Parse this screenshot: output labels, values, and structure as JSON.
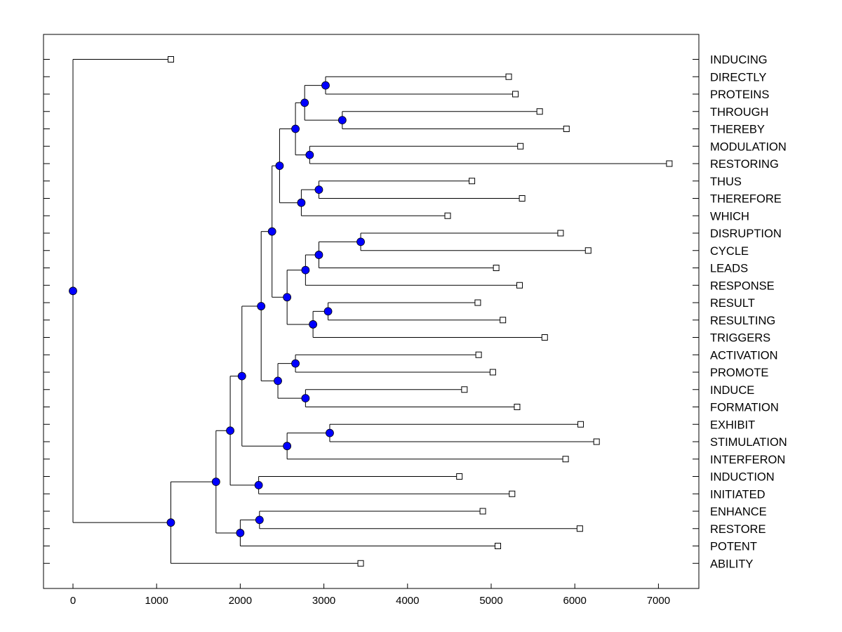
{
  "chart_data": {
    "type": "dendrogram",
    "title": "",
    "xlabel": "",
    "ylabel": "",
    "xlim": [
      -360,
      7500
    ],
    "x_ticks": [
      0,
      1000,
      2000,
      3000,
      4000,
      5000,
      6000,
      7000
    ],
    "x_tick_labels": [
      "0",
      "1000",
      "2000",
      "3000",
      "4000",
      "5000",
      "6000",
      "7000"
    ],
    "leaf_marker_color": "#ffffff",
    "node_marker_color": "#0000ff",
    "line_color": "#000000",
    "leaves": [
      {
        "id": "L0",
        "label": "INDUCING",
        "x": 1170
      },
      {
        "id": "L1",
        "label": "DIRECTLY",
        "x": 5210
      },
      {
        "id": "L2",
        "label": "PROTEINS",
        "x": 5290
      },
      {
        "id": "L3",
        "label": "THROUGH",
        "x": 5580
      },
      {
        "id": "L4",
        "label": "THEREBY",
        "x": 5900
      },
      {
        "id": "L5",
        "label": "MODULATION",
        "x": 5350
      },
      {
        "id": "L6",
        "label": "RESTORING",
        "x": 7130
      },
      {
        "id": "L7",
        "label": "THUS",
        "x": 4770
      },
      {
        "id": "L8",
        "label": "THEREFORE",
        "x": 5370
      },
      {
        "id": "L9",
        "label": "WHICH",
        "x": 4480
      },
      {
        "id": "L10",
        "label": "DISRUPTION",
        "x": 5830
      },
      {
        "id": "L11",
        "label": "CYCLE",
        "x": 6160
      },
      {
        "id": "L12",
        "label": "LEADS",
        "x": 5060
      },
      {
        "id": "L13",
        "label": "RESPONSE",
        "x": 5340
      },
      {
        "id": "L14",
        "label": "RESULT",
        "x": 4840
      },
      {
        "id": "L15",
        "label": "RESULTING",
        "x": 5140
      },
      {
        "id": "L16",
        "label": "TRIGGERS",
        "x": 5640
      },
      {
        "id": "L17",
        "label": "ACTIVATION",
        "x": 4850
      },
      {
        "id": "L18",
        "label": "PROMOTE",
        "x": 5020
      },
      {
        "id": "L19",
        "label": "INDUCE",
        "x": 4680
      },
      {
        "id": "L20",
        "label": "FORMATION",
        "x": 5310
      },
      {
        "id": "L21",
        "label": "EXHIBIT",
        "x": 6070
      },
      {
        "id": "L22",
        "label": "STIMULATION",
        "x": 6260
      },
      {
        "id": "L23",
        "label": "INTERFERON",
        "x": 5890
      },
      {
        "id": "L24",
        "label": "INDUCTION",
        "x": 4620
      },
      {
        "id": "L25",
        "label": "INITIATED",
        "x": 5250
      },
      {
        "id": "L26",
        "label": "ENHANCE",
        "x": 4900
      },
      {
        "id": "L27",
        "label": "RESTORE",
        "x": 6060
      },
      {
        "id": "L28",
        "label": "POTENT",
        "x": 5080
      },
      {
        "id": "L29",
        "label": "ABILITY",
        "x": 3440
      }
    ],
    "nodes": [
      {
        "id": "N1",
        "x": 3020,
        "children": [
          "L1",
          "L2"
        ]
      },
      {
        "id": "N2",
        "x": 3220,
        "children": [
          "L3",
          "L4"
        ]
      },
      {
        "id": "N3",
        "x": 2770,
        "children": [
          "N1",
          "N2"
        ]
      },
      {
        "id": "N4",
        "x": 2830,
        "children": [
          "L5",
          "L6"
        ]
      },
      {
        "id": "N5",
        "x": 2660,
        "children": [
          "N3",
          "N4"
        ]
      },
      {
        "id": "N6",
        "x": 2940,
        "children": [
          "L7",
          "L8"
        ]
      },
      {
        "id": "N7",
        "x": 2730,
        "children": [
          "N6",
          "L9"
        ]
      },
      {
        "id": "N8",
        "x": 2470,
        "children": [
          "N5",
          "N7"
        ]
      },
      {
        "id": "N9",
        "x": 3440,
        "children": [
          "L10",
          "L11"
        ]
      },
      {
        "id": "N10",
        "x": 2940,
        "children": [
          "N9",
          "L12"
        ]
      },
      {
        "id": "N11",
        "x": 2780,
        "children": [
          "N10",
          "L13"
        ]
      },
      {
        "id": "N12",
        "x": 3050,
        "children": [
          "L14",
          "L15"
        ]
      },
      {
        "id": "N13",
        "x": 2870,
        "children": [
          "N12",
          "L16"
        ]
      },
      {
        "id": "N14",
        "x": 2560,
        "children": [
          "N11",
          "N13"
        ]
      },
      {
        "id": "N15",
        "x": 2380,
        "children": [
          "N8",
          "N14"
        ]
      },
      {
        "id": "N16",
        "x": 2660,
        "children": [
          "L17",
          "L18"
        ]
      },
      {
        "id": "N17",
        "x": 2780,
        "children": [
          "L19",
          "L20"
        ]
      },
      {
        "id": "N18",
        "x": 2450,
        "children": [
          "N16",
          "N17"
        ]
      },
      {
        "id": "N19",
        "x": 2250,
        "children": [
          "N15",
          "N18"
        ]
      },
      {
        "id": "N20",
        "x": 3070,
        "children": [
          "L21",
          "L22"
        ]
      },
      {
        "id": "N21",
        "x": 2560,
        "children": [
          "N20",
          "L23"
        ]
      },
      {
        "id": "N22",
        "x": 2020,
        "children": [
          "N19",
          "N21"
        ]
      },
      {
        "id": "N23",
        "x": 2220,
        "children": [
          "L24",
          "L25"
        ]
      },
      {
        "id": "N24",
        "x": 1880,
        "children": [
          "N22",
          "N23"
        ]
      },
      {
        "id": "N25",
        "x": 2230,
        "children": [
          "L26",
          "L27"
        ]
      },
      {
        "id": "N26",
        "x": 2000,
        "children": [
          "N25",
          "L28"
        ]
      },
      {
        "id": "N27",
        "x": 1710,
        "children": [
          "N24",
          "N26"
        ]
      },
      {
        "id": "N28",
        "x": 1170,
        "children": [
          "N27",
          "L29"
        ]
      },
      {
        "id": "N29",
        "x": 0,
        "children": [
          "L0",
          "N28"
        ]
      }
    ]
  }
}
